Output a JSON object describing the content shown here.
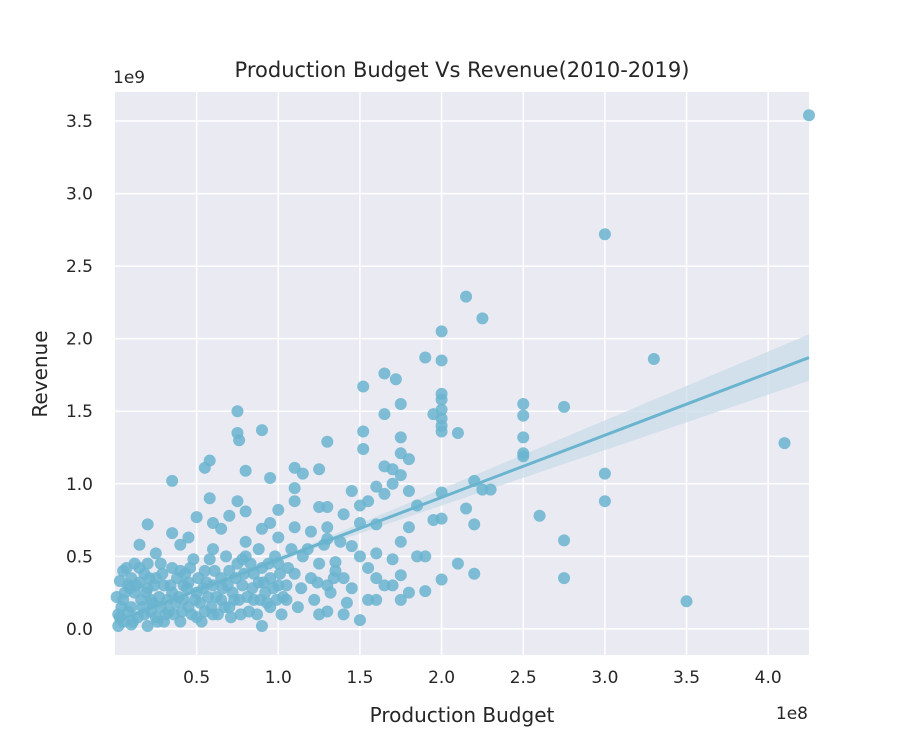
{
  "chart_data": {
    "type": "scatter",
    "title": "Production Budget Vs Revenue(2010-2019)",
    "xlabel": "Production Budget",
    "ylabel": "Revenue",
    "x_offset_label": "1e8",
    "y_offset_label": "1e9",
    "xlim": [
      0.0,
      4.25
    ],
    "ylim": [
      -0.18,
      3.7
    ],
    "x_ticks": [
      0.5,
      1.0,
      1.5,
      2.0,
      2.5,
      3.0,
      3.5,
      4.0
    ],
    "x_tick_labels": [
      "0.5",
      "1.0",
      "1.5",
      "2.0",
      "2.5",
      "3.0",
      "3.5",
      "4.0"
    ],
    "y_ticks": [
      0.0,
      0.5,
      1.0,
      1.5,
      2.0,
      2.5,
      3.0,
      3.5
    ],
    "y_tick_labels": [
      "0.0",
      "0.5",
      "1.0",
      "1.5",
      "2.0",
      "2.5",
      "3.0",
      "3.5"
    ],
    "grid": true,
    "background": "#eaeaf2",
    "point_color": "#6ab4cf",
    "line_color": "#6ab4cf",
    "band_color": "#c9dce8",
    "regression_line": {
      "x": [
        0.0,
        4.25
      ],
      "y": [
        0.05,
        1.87
      ],
      "ci_upper_end": 2.03,
      "ci_lower_end": 1.71
    },
    "points": [
      [
        4.25,
        3.54
      ],
      [
        3.0,
        2.72
      ],
      [
        2.15,
        2.29
      ],
      [
        2.25,
        2.14
      ],
      [
        2.0,
        2.05
      ],
      [
        3.3,
        1.86
      ],
      [
        1.9,
        1.87
      ],
      [
        2.0,
        1.85
      ],
      [
        1.65,
        1.76
      ],
      [
        1.72,
        1.72
      ],
      [
        1.52,
        1.67
      ],
      [
        2.0,
        1.62
      ],
      [
        2.0,
        1.58
      ],
      [
        2.5,
        1.55
      ],
      [
        2.75,
        1.53
      ],
      [
        1.75,
        1.55
      ],
      [
        0.75,
        1.5
      ],
      [
        2.0,
        1.51
      ],
      [
        1.95,
        1.48
      ],
      [
        1.65,
        1.48
      ],
      [
        2.5,
        1.47
      ],
      [
        2.0,
        1.45
      ],
      [
        2.0,
        1.4
      ],
      [
        0.9,
        1.37
      ],
      [
        1.52,
        1.36
      ],
      [
        2.1,
        1.35
      ],
      [
        0.75,
        1.35
      ],
      [
        2.0,
        1.36
      ],
      [
        0.76,
        1.3
      ],
      [
        1.3,
        1.29
      ],
      [
        2.5,
        1.32
      ],
      [
        1.75,
        1.32
      ],
      [
        4.1,
        1.28
      ],
      [
        1.52,
        1.24
      ],
      [
        2.5,
        1.21
      ],
      [
        2.5,
        1.19
      ],
      [
        1.75,
        1.21
      ],
      [
        0.58,
        1.16
      ],
      [
        1.8,
        1.17
      ],
      [
        1.65,
        1.12
      ],
      [
        1.1,
        1.11
      ],
      [
        0.55,
        1.11
      ],
      [
        1.15,
        1.07
      ],
      [
        1.25,
        1.1
      ],
      [
        0.8,
        1.09
      ],
      [
        1.7,
        1.1
      ],
      [
        1.75,
        1.06
      ],
      [
        3.0,
        1.07
      ],
      [
        0.95,
        1.04
      ],
      [
        0.35,
        1.02
      ],
      [
        1.7,
        1.0
      ],
      [
        1.6,
        0.98
      ],
      [
        2.2,
        1.02
      ],
      [
        2.3,
        0.96
      ],
      [
        2.25,
        0.96
      ],
      [
        1.1,
        0.97
      ],
      [
        1.45,
        0.95
      ],
      [
        1.8,
        0.95
      ],
      [
        1.65,
        0.93
      ],
      [
        2.0,
        0.94
      ],
      [
        1.1,
        0.88
      ],
      [
        0.58,
        0.9
      ],
      [
        1.55,
        0.88
      ],
      [
        0.75,
        0.88
      ],
      [
        1.3,
        0.84
      ],
      [
        1.25,
        0.84
      ],
      [
        1.0,
        0.82
      ],
      [
        3.0,
        0.88
      ],
      [
        1.5,
        0.85
      ],
      [
        2.15,
        0.83
      ],
      [
        1.85,
        0.85
      ],
      [
        0.8,
        0.81
      ],
      [
        0.7,
        0.78
      ],
      [
        2.6,
        0.78
      ],
      [
        1.4,
        0.79
      ],
      [
        0.5,
        0.77
      ],
      [
        2.0,
        0.76
      ],
      [
        1.95,
        0.75
      ],
      [
        1.5,
        0.73
      ],
      [
        0.6,
        0.73
      ],
      [
        2.2,
        0.72
      ],
      [
        1.6,
        0.72
      ],
      [
        0.95,
        0.73
      ],
      [
        0.2,
        0.72
      ],
      [
        1.1,
        0.7
      ],
      [
        1.8,
        0.7
      ],
      [
        1.3,
        0.7
      ],
      [
        0.65,
        0.69
      ],
      [
        0.9,
        0.69
      ],
      [
        1.2,
        0.67
      ],
      [
        0.35,
        0.66
      ],
      [
        0.45,
        0.63
      ],
      [
        1.0,
        0.63
      ],
      [
        1.3,
        0.62
      ],
      [
        2.75,
        0.61
      ],
      [
        1.75,
        0.6
      ],
      [
        0.8,
        0.6
      ],
      [
        0.15,
        0.58
      ],
      [
        0.4,
        0.58
      ],
      [
        1.45,
        0.57
      ],
      [
        1.6,
        0.52
      ],
      [
        1.9,
        0.5
      ],
      [
        1.5,
        0.5
      ],
      [
        2.1,
        0.45
      ],
      [
        0.25,
        0.52
      ],
      [
        0.6,
        0.55
      ],
      [
        1.55,
        0.42
      ],
      [
        1.7,
        0.48
      ],
      [
        1.35,
        0.46
      ],
      [
        2.0,
        0.34
      ],
      [
        2.2,
        0.38
      ],
      [
        1.75,
        0.37
      ],
      [
        2.75,
        0.35
      ],
      [
        1.65,
        0.3
      ],
      [
        1.9,
        0.26
      ],
      [
        1.8,
        0.25
      ],
      [
        1.75,
        0.2
      ],
      [
        3.5,
        0.19
      ],
      [
        1.3,
        0.12
      ],
      [
        1.25,
        0.1
      ],
      [
        1.5,
        0.06
      ],
      [
        0.9,
        0.02
      ],
      [
        0.05,
        0.4
      ],
      [
        0.1,
        0.35
      ],
      [
        0.08,
        0.3
      ],
      [
        0.12,
        0.25
      ],
      [
        0.15,
        0.32
      ],
      [
        0.2,
        0.28
      ],
      [
        0.22,
        0.2
      ],
      [
        0.25,
        0.35
      ],
      [
        0.3,
        0.3
      ],
      [
        0.28,
        0.15
      ],
      [
        0.35,
        0.25
      ],
      [
        0.4,
        0.4
      ],
      [
        0.42,
        0.2
      ],
      [
        0.45,
        0.32
      ],
      [
        0.5,
        0.25
      ],
      [
        0.55,
        0.4
      ],
      [
        0.6,
        0.3
      ],
      [
        0.65,
        0.35
      ],
      [
        0.7,
        0.4
      ],
      [
        0.75,
        0.45
      ],
      [
        0.78,
        0.3
      ],
      [
        0.8,
        0.5
      ],
      [
        0.85,
        0.38
      ],
      [
        0.9,
        0.42
      ],
      [
        0.95,
        0.35
      ],
      [
        1.0,
        0.45
      ],
      [
        1.05,
        0.3
      ],
      [
        1.1,
        0.38
      ],
      [
        1.15,
        0.5
      ],
      [
        1.2,
        0.35
      ],
      [
        1.25,
        0.45
      ],
      [
        1.3,
        0.3
      ],
      [
        1.35,
        0.4
      ],
      [
        1.4,
        0.35
      ],
      [
        1.45,
        0.28
      ],
      [
        1.05,
        0.2
      ],
      [
        0.95,
        0.15
      ],
      [
        0.85,
        0.2
      ],
      [
        0.7,
        0.15
      ],
      [
        0.6,
        0.1
      ],
      [
        0.5,
        0.08
      ],
      [
        0.4,
        0.05
      ],
      [
        0.3,
        0.05
      ],
      [
        0.2,
        0.02
      ],
      [
        0.1,
        0.03
      ],
      [
        0.05,
        0.05
      ],
      [
        0.02,
        0.1
      ],
      [
        0.08,
        0.12
      ],
      [
        0.18,
        0.1
      ],
      [
        0.25,
        0.08
      ],
      [
        0.33,
        0.12
      ],
      [
        0.45,
        0.15
      ],
      [
        0.55,
        0.12
      ],
      [
        0.65,
        0.2
      ],
      [
        0.72,
        0.25
      ],
      [
        0.82,
        0.12
      ],
      [
        0.92,
        0.25
      ],
      [
        1.02,
        0.1
      ],
      [
        1.12,
        0.15
      ],
      [
        1.22,
        0.2
      ],
      [
        1.32,
        0.25
      ],
      [
        1.42,
        0.18
      ],
      [
        1.55,
        0.2
      ],
      [
        1.6,
        0.35
      ],
      [
        1.7,
        0.3
      ],
      [
        1.85,
        0.5
      ],
      [
        1.6,
        0.2
      ],
      [
        1.4,
        0.1
      ],
      [
        0.05,
        0.2
      ],
      [
        0.12,
        0.45
      ],
      [
        0.18,
        0.38
      ],
      [
        0.28,
        0.45
      ],
      [
        0.38,
        0.35
      ],
      [
        0.48,
        0.48
      ],
      [
        0.58,
        0.48
      ],
      [
        0.68,
        0.5
      ],
      [
        0.78,
        0.48
      ],
      [
        0.88,
        0.55
      ],
      [
        0.98,
        0.5
      ],
      [
        1.08,
        0.55
      ],
      [
        1.18,
        0.55
      ],
      [
        1.28,
        0.58
      ],
      [
        1.38,
        0.6
      ],
      [
        0.02,
        0.02
      ],
      [
        0.04,
        0.15
      ],
      [
        0.06,
        0.25
      ],
      [
        0.1,
        0.15
      ],
      [
        0.14,
        0.08
      ],
      [
        0.16,
        0.2
      ],
      [
        0.22,
        0.12
      ],
      [
        0.24,
        0.3
      ],
      [
        0.32,
        0.2
      ],
      [
        0.36,
        0.1
      ],
      [
        0.44,
        0.28
      ],
      [
        0.52,
        0.18
      ],
      [
        0.56,
        0.32
      ],
      [
        0.62,
        0.22
      ],
      [
        0.66,
        0.28
      ],
      [
        0.74,
        0.35
      ],
      [
        0.76,
        0.2
      ],
      [
        0.84,
        0.28
      ],
      [
        0.88,
        0.32
      ],
      [
        0.94,
        0.45
      ],
      [
        1.0,
        0.3
      ],
      [
        1.06,
        0.42
      ],
      [
        1.14,
        0.28
      ],
      [
        1.24,
        0.32
      ],
      [
        1.34,
        0.35
      ],
      [
        0.03,
        0.33
      ],
      [
        0.07,
        0.42
      ],
      [
        0.11,
        0.05
      ],
      [
        0.13,
        0.3
      ],
      [
        0.17,
        0.15
      ],
      [
        0.19,
        0.25
      ],
      [
        0.21,
        0.35
      ],
      [
        0.23,
        0.18
      ],
      [
        0.27,
        0.22
      ],
      [
        0.29,
        0.38
      ],
      [
        0.31,
        0.1
      ],
      [
        0.34,
        0.3
      ],
      [
        0.37,
        0.18
      ],
      [
        0.39,
        0.22
      ],
      [
        0.41,
        0.12
      ],
      [
        0.43,
        0.38
      ],
      [
        0.47,
        0.1
      ],
      [
        0.49,
        0.2
      ],
      [
        0.51,
        0.35
      ],
      [
        0.53,
        0.05
      ],
      [
        0.57,
        0.22
      ],
      [
        0.59,
        0.15
      ],
      [
        0.61,
        0.4
      ],
      [
        0.63,
        0.1
      ],
      [
        0.67,
        0.15
      ],
      [
        0.69,
        0.3
      ],
      [
        0.71,
        0.08
      ],
      [
        0.73,
        0.2
      ],
      [
        0.77,
        0.1
      ],
      [
        0.79,
        0.38
      ],
      [
        0.81,
        0.22
      ],
      [
        0.83,
        0.45
      ],
      [
        0.87,
        0.1
      ],
      [
        0.89,
        0.2
      ],
      [
        0.91,
        0.32
      ],
      [
        0.93,
        0.18
      ],
      [
        0.97,
        0.28
      ],
      [
        0.99,
        0.2
      ],
      [
        1.01,
        0.38
      ],
      [
        1.03,
        0.22
      ],
      [
        0.01,
        0.22
      ],
      [
        0.03,
        0.08
      ],
      [
        0.09,
        0.28
      ],
      [
        0.15,
        0.42
      ],
      [
        0.2,
        0.45
      ],
      [
        0.26,
        0.05
      ],
      [
        0.35,
        0.42
      ],
      [
        0.42,
        0.3
      ],
      [
        0.46,
        0.42
      ],
      [
        0.54,
        0.28
      ]
    ]
  }
}
